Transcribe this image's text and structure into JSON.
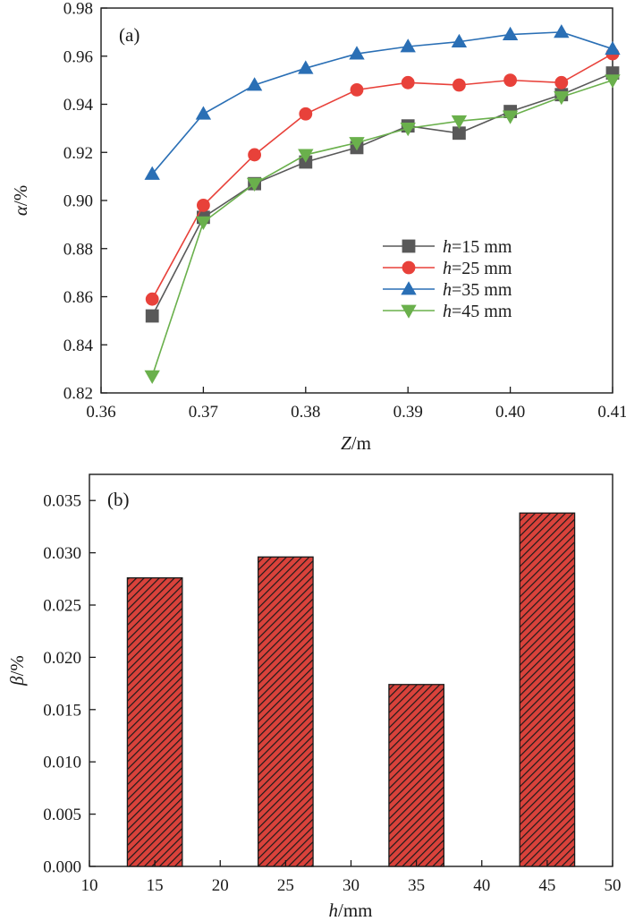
{
  "chart_data": [
    {
      "type": "line",
      "panel_label": "(a)",
      "xlabel": {
        "var": "Z",
        "unit": "/m"
      },
      "ylabel": {
        "var": "α",
        "unit": "/%"
      },
      "xlim": [
        0.36,
        0.41
      ],
      "ylim": [
        0.82,
        0.98
      ],
      "xticks": [
        "0.36",
        "0.37",
        "0.38",
        "0.39",
        "0.40",
        "0.41"
      ],
      "yticks": [
        "0.82",
        "0.84",
        "0.86",
        "0.88",
        "0.90",
        "0.92",
        "0.94",
        "0.96",
        "0.98"
      ],
      "x": [
        0.365,
        0.37,
        0.375,
        0.38,
        0.385,
        0.39,
        0.395,
        0.4,
        0.405,
        0.41
      ],
      "legend_position": "lower-right",
      "series": [
        {
          "name": "h=15 mm",
          "var": "h",
          "rest": "=15 mm",
          "color": "#595959",
          "marker": "square",
          "values": [
            0.852,
            0.893,
            0.907,
            0.916,
            0.922,
            0.931,
            0.928,
            0.937,
            0.944,
            0.953
          ]
        },
        {
          "name": "h=25 mm",
          "var": "h",
          "rest": "=25 mm",
          "color": "#e8413a",
          "marker": "circle",
          "values": [
            0.859,
            0.898,
            0.919,
            0.936,
            0.946,
            0.949,
            0.948,
            0.95,
            0.949,
            0.961
          ]
        },
        {
          "name": "h=35 mm",
          "var": "h",
          "rest": "=35 mm",
          "color": "#2a6fb5",
          "marker": "triangle-up",
          "values": [
            0.911,
            0.936,
            0.948,
            0.955,
            0.961,
            0.964,
            0.966,
            0.969,
            0.97,
            0.963
          ]
        },
        {
          "name": "h=45 mm",
          "var": "h",
          "rest": "=45 mm",
          "color": "#6ab04c",
          "marker": "triangle-down",
          "values": [
            0.827,
            0.891,
            0.907,
            0.919,
            0.924,
            0.93,
            0.933,
            0.935,
            0.943,
            0.95
          ]
        }
      ]
    },
    {
      "type": "bar",
      "panel_label": "(b)",
      "xlabel": {
        "var": "h",
        "unit": "/mm"
      },
      "ylabel": {
        "var": "β",
        "unit": "/%"
      },
      "xlim": [
        10,
        50
      ],
      "ylim": [
        0,
        0.0375
      ],
      "xticks": [
        "10",
        "15",
        "20",
        "25",
        "30",
        "35",
        "40",
        "45",
        "50"
      ],
      "yticks": [
        "0.000",
        "0.005",
        "0.010",
        "0.015",
        "0.020",
        "0.025",
        "0.030",
        "0.035"
      ],
      "categories": [
        15,
        25,
        35,
        45
      ],
      "values": [
        0.0276,
        0.0296,
        0.0174,
        0.0338
      ],
      "bar_width": 4.2,
      "bar_color": "#d9423b",
      "hatch_color": "#1a1a1a"
    }
  ]
}
